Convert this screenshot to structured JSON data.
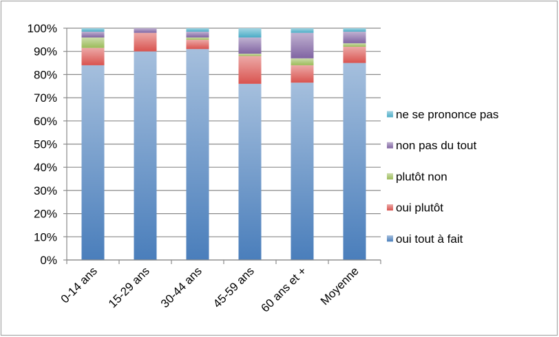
{
  "chart_data": {
    "type": "bar",
    "stacked": true,
    "normalized_percent": true,
    "categories": [
      "0-14 ans",
      "15-29 ans",
      "30-44 ans",
      "45-59 ans",
      "60 ans et +",
      "Moyenne"
    ],
    "series": [
      {
        "name": "oui tout à fait",
        "values": [
          84,
          90,
          91,
          76,
          76.5,
          85
        ],
        "color": "#4a7ebb"
      },
      {
        "name": "oui plutôt",
        "values": [
          7.5,
          8,
          4,
          12,
          7.5,
          7
        ],
        "color": "#d9534f"
      },
      {
        "name": "plutôt non",
        "values": [
          4.5,
          0,
          1,
          1,
          3,
          1.5
        ],
        "color": "#9bbb59"
      },
      {
        "name": "non pas du tout",
        "values": [
          2.5,
          2,
          2.5,
          7,
          11,
          5
        ],
        "color": "#8064a2"
      },
      {
        "name": "ne se prononce pas",
        "values": [
          1.5,
          0,
          1.5,
          4,
          2,
          1.5
        ],
        "color": "#4bacc6"
      }
    ],
    "ylim": [
      0,
      100
    ],
    "y_ticks": [
      0,
      10,
      20,
      30,
      40,
      50,
      60,
      70,
      80,
      90,
      100
    ],
    "y_tick_labels": [
      "0%",
      "10%",
      "20%",
      "30%",
      "40%",
      "50%",
      "60%",
      "70%",
      "80%",
      "90%",
      "100%"
    ],
    "grid": true,
    "legend_position": "right",
    "legend_order": "reverse-stack",
    "frame_color": "#a6a6a6",
    "grid_color": "#8a8a8a"
  }
}
